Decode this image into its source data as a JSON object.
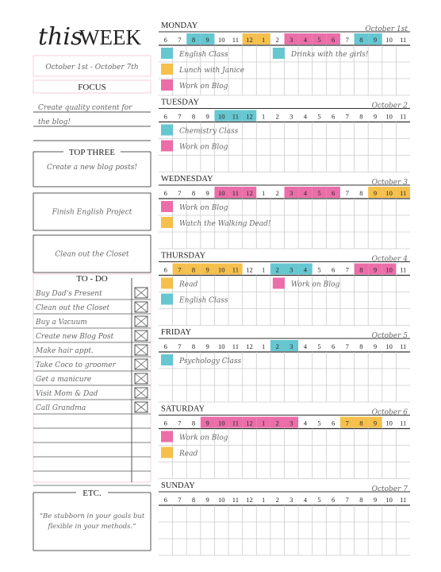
{
  "header": {
    "script": "this",
    "title": "WEEK",
    "dates": "October 1st - October 7th"
  },
  "focus": {
    "title": "FOCUS",
    "lines": [
      "Create quality content for",
      "the blog!"
    ]
  },
  "top_three": {
    "title": "TOP THREE",
    "items": [
      "Create a new blog posts!",
      "Finish English Project",
      "Clean out the Closet"
    ]
  },
  "todo": {
    "title": "TO - DO",
    "items": [
      "Buy Dad's Present",
      "Clean out the Closet",
      "Buy a Vacuum",
      "Create new Blog Post",
      "Make hair appt.",
      "Take Coco to groomer",
      "Get a manicure",
      "Visit Mom & Dad",
      "Call Grandma"
    ]
  },
  "etc": {
    "title": "ETC.",
    "lines": [
      "“Be stubborn in your goals but",
      "flexible in your methods.”"
    ]
  },
  "hours": [
    "6",
    "7",
    "8",
    "9",
    "10",
    "11",
    "12",
    "1",
    "2",
    "3",
    "4",
    "5",
    "6",
    "7",
    "8",
    "9",
    "10",
    "11"
  ],
  "days": [
    {
      "name": "MONDAY",
      "date": "October 1st",
      "hour_colors": [
        null,
        null,
        "#4bbdc9",
        "#4bbdc9",
        null,
        null,
        "#f5b52e",
        "#f5b52e",
        null,
        "#e8559a",
        "#e8559a",
        "#e8559a",
        "#e8559a",
        null,
        "#4bbdc9",
        "#4bbdc9",
        null,
        null
      ],
      "events": [
        {
          "text": "English Class",
          "color": "#4bbdc9"
        },
        {
          "text": "Lunch with Janice",
          "color": "#f5b52e"
        },
        {
          "text": "Work on Blog",
          "color": "#e8559a"
        }
      ],
      "events_right": [
        {
          "text": "Drinks with the girls!",
          "color": "#4bbdc9"
        }
      ]
    },
    {
      "name": "TUESDAY",
      "date": "October 2",
      "hour_colors": [
        null,
        null,
        null,
        null,
        "#4bbdc9",
        "#4bbdc9",
        "#4bbdc9",
        null,
        null,
        null,
        null,
        null,
        null,
        null,
        null,
        null,
        null,
        null
      ],
      "events": [
        {
          "text": "Chemistry Class",
          "color": "#4bbdc9"
        },
        {
          "text": "Work on Blog",
          "color": "#e8559a"
        }
      ],
      "events_right": []
    },
    {
      "name": "WEDNESDAY",
      "date": "October 3",
      "hour_colors": [
        null,
        null,
        null,
        null,
        "#e8559a",
        "#e8559a",
        "#e8559a",
        null,
        null,
        "#e8559a",
        "#e8559a",
        "#e8559a",
        "#e8559a",
        null,
        null,
        "#f5b52e",
        "#f5b52e",
        "#f5b52e"
      ],
      "events": [
        {
          "text": "Work on Blog",
          "color": "#e8559a"
        },
        {
          "text": "Watch the Walking Dead!",
          "color": "#f5b52e"
        }
      ],
      "events_right": []
    },
    {
      "name": "THURSDAY",
      "date": "October 4",
      "hour_colors": [
        null,
        "#f5b52e",
        "#f5b52e",
        "#f5b52e",
        "#f5b52e",
        "#f5b52e",
        null,
        null,
        "#4bbdc9",
        "#4bbdc9",
        "#4bbdc9",
        null,
        null,
        null,
        "#e8559a",
        "#e8559a",
        "#e8559a",
        null
      ],
      "events": [
        {
          "text": "Read",
          "color": "#f5b52e"
        },
        {
          "text": "English Class",
          "color": "#4bbdc9"
        }
      ],
      "events_right": [
        {
          "text": "Work on Blog",
          "color": "#e8559a"
        }
      ]
    },
    {
      "name": "FRIDAY",
      "date": "October 5",
      "hour_colors": [
        null,
        null,
        null,
        null,
        null,
        null,
        null,
        null,
        "#4bbdc9",
        "#4bbdc9",
        null,
        null,
        null,
        null,
        null,
        null,
        null,
        null
      ],
      "events": [
        {
          "text": "Psychology Class",
          "color": "#4bbdc9"
        }
      ],
      "events_right": []
    },
    {
      "name": "SATURDAY",
      "date": "October 6",
      "hour_colors": [
        null,
        null,
        null,
        "#e8559a",
        "#e8559a",
        "#e8559a",
        "#e8559a",
        "#e8559a",
        "#e8559a",
        "#e8559a",
        null,
        null,
        null,
        "#f5b52e",
        "#f5b52e",
        "#f5b52e",
        null,
        null
      ],
      "events": [
        {
          "text": "Work on Blog",
          "color": "#e8559a"
        },
        {
          "text": "Read",
          "color": "#f5b52e"
        }
      ],
      "events_right": []
    },
    {
      "name": "SUNDAY",
      "date": "October 7",
      "hour_colors": [
        null,
        null,
        null,
        null,
        null,
        null,
        null,
        null,
        null,
        null,
        null,
        null,
        null,
        null,
        null,
        null,
        null,
        null
      ],
      "events": [],
      "events_right": []
    }
  ]
}
